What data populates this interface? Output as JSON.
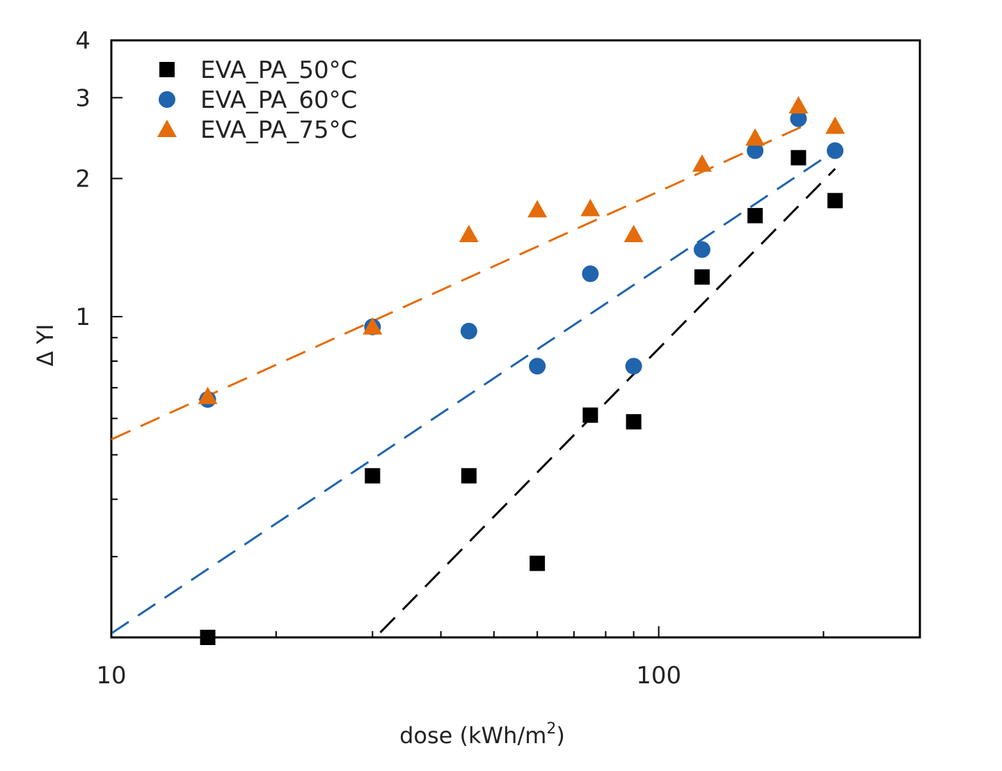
{
  "chart_data": {
    "type": "scatter",
    "title": "",
    "xlabel": "dose (kWh/m",
    "xlabel_sup": "2",
    "xlabel_close": ")",
    "ylabel": "Δ YI",
    "xscale": "log",
    "yscale": "log",
    "xlim": [
      10,
      300
    ],
    "ylim": [
      0.2,
      4
    ],
    "x_ticks": [
      {
        "value": 10,
        "label": "10"
      },
      {
        "value": 100,
        "label": "100"
      }
    ],
    "x_minor_ticks": [
      20,
      30,
      40,
      50,
      60,
      70,
      80,
      90,
      200,
      300
    ],
    "y_ticks": [
      {
        "value": 1,
        "label": "1"
      },
      {
        "value": 2,
        "label": "2"
      },
      {
        "value": 3,
        "label": "3"
      },
      {
        "value": 4,
        "label": "4"
      }
    ],
    "y_minor_ticks": [
      0.3,
      0.4,
      0.5,
      0.6,
      0.7,
      0.8,
      0.9
    ],
    "grid": false,
    "legend_position": "top-left",
    "series": [
      {
        "name": "EVA_PA_50°C",
        "marker": "square",
        "color": "#000000",
        "x": [
          15,
          30,
          45,
          60,
          75,
          90,
          120,
          150,
          180,
          210
        ],
        "y": [
          0.2,
          0.45,
          0.45,
          0.29,
          0.61,
          0.59,
          1.22,
          1.66,
          2.22,
          1.79
        ],
        "fit": {
          "x": [
            31,
            210
          ],
          "y": [
            0.205,
            2.1
          ]
        }
      },
      {
        "name": "EVA_PA_60°C",
        "marker": "circle",
        "color": "#1f64ad",
        "x": [
          15,
          30,
          45,
          60,
          75,
          90,
          120,
          150,
          180,
          210
        ],
        "y": [
          0.66,
          0.95,
          0.93,
          0.78,
          1.24,
          0.78,
          1.4,
          2.3,
          2.7,
          2.3
        ],
        "fit": {
          "x": [
            10,
            210
          ],
          "y": [
            0.204,
            2.3
          ]
        }
      },
      {
        "name": "EVA_PA_75°C",
        "marker": "triangle",
        "color": "#e46c0a",
        "x": [
          15,
          30,
          45,
          60,
          75,
          90,
          120,
          150,
          180,
          210
        ],
        "y": [
          0.67,
          0.95,
          1.51,
          1.71,
          1.72,
          1.51,
          2.15,
          2.45,
          2.88,
          2.6
        ],
        "fit": {
          "x": [
            10,
            190
          ],
          "y": [
            0.54,
            2.65
          ]
        }
      }
    ]
  }
}
